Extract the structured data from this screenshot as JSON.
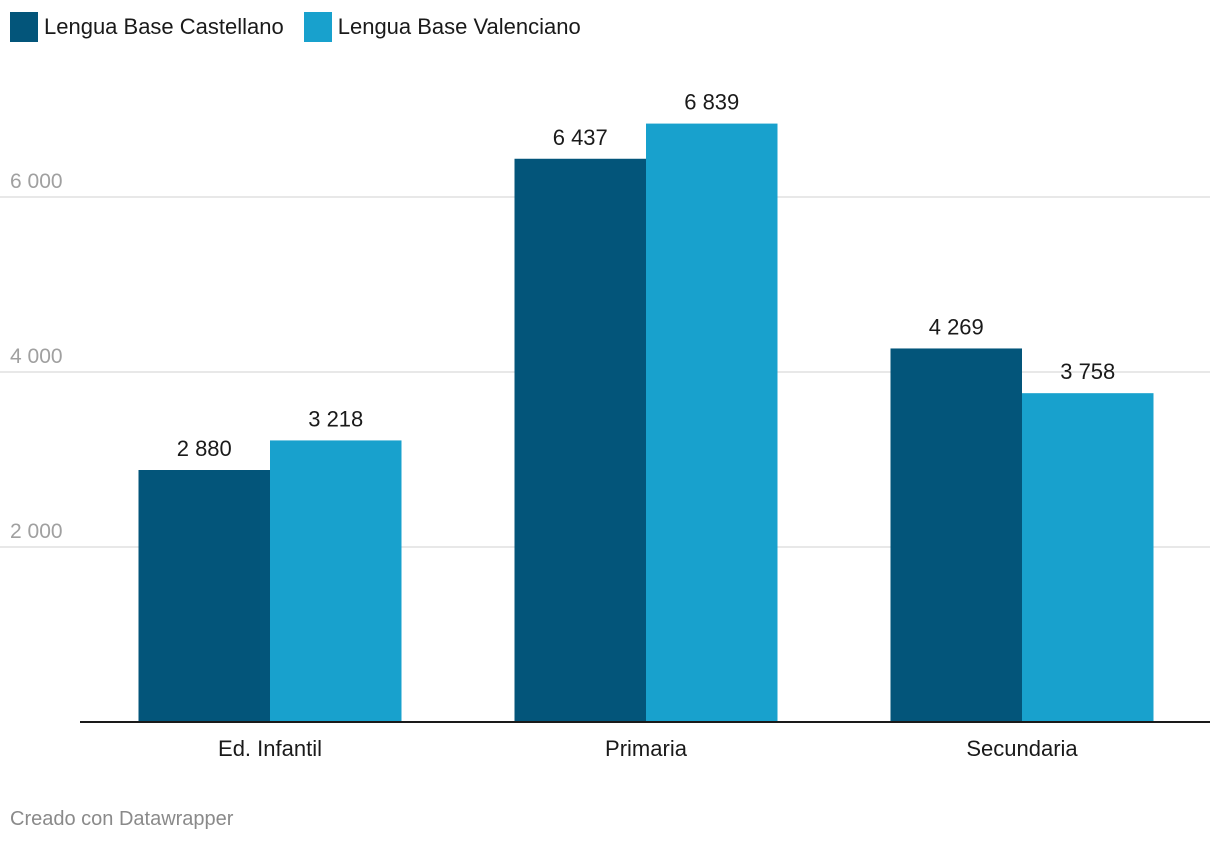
{
  "colors": {
    "series_1": "#03557a",
    "series_2": "#18a1cd",
    "gridline": "#e0e0e0",
    "axis": "#1a1a1a",
    "tick_label": "#a0a0a0",
    "footer": "#8a8a8a"
  },
  "footer": {
    "text": "Creado con Datawrapper"
  },
  "chart_data": {
    "type": "bar",
    "categories": [
      "Ed. Infantil",
      "Primaria",
      "Secundaria"
    ],
    "series": [
      {
        "name": "Lengua Base Castellano",
        "values": [
          2880,
          6437,
          4269
        ],
        "labels": [
          "2 880",
          "6 437",
          "4 269"
        ]
      },
      {
        "name": "Lengua Base Valenciano",
        "values": [
          3218,
          6839,
          3758
        ],
        "labels": [
          "3 218",
          "6 839",
          "3 758"
        ]
      }
    ],
    "title": "",
    "xlabel": "",
    "ylabel": "",
    "ylim": [
      0,
      7000
    ],
    "yticks": [
      2000,
      4000,
      6000
    ],
    "ytick_labels": [
      "2 000",
      "4 000",
      "6 000"
    ],
    "grid": true,
    "legend": "top-left"
  }
}
